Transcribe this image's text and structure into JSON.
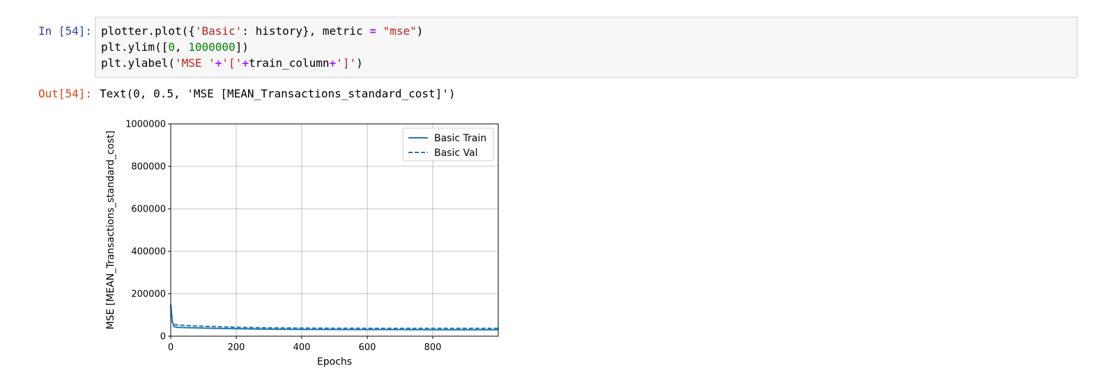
{
  "input_cell": {
    "prompt": "In [54]:",
    "line1": {
      "a": "plotter.plot({",
      "b": "'Basic'",
      "c": ": history}, metric ",
      "d": "=",
      "e": " ",
      "f": "\"mse\"",
      "g": ")"
    },
    "line2": {
      "a": "plt.ylim([",
      "b": "0",
      "c": ", ",
      "d": "1000000",
      "e": "])"
    },
    "line3": {
      "a": "plt.ylabel(",
      "b": "'MSE '",
      "c": "+",
      "d": "'['",
      "e": "+",
      "f": "train_column",
      "g": "+",
      "h": "']'",
      "i": ")"
    }
  },
  "output_cell": {
    "prompt": "Out[54]:",
    "text": "Text(0, 0.5, 'MSE [MEAN_Transactions_standard_cost]')"
  },
  "colors": {
    "in_prompt": "#303f9f",
    "out_prompt": "#d84315",
    "series": "#1f77b4"
  },
  "chart_data": {
    "type": "line",
    "title": "",
    "xlabel": "Epochs",
    "ylabel": "MSE [MEAN_Transactions_standard_cost]",
    "xlim": [
      0,
      1000
    ],
    "ylim": [
      0,
      1000000
    ],
    "x_ticks": [
      0,
      200,
      400,
      600,
      800
    ],
    "x_tick_labels": [
      "0",
      "200",
      "400",
      "600",
      "800"
    ],
    "y_ticks": [
      0,
      200000,
      400000,
      600000,
      800000,
      1000000
    ],
    "y_tick_labels": [
      "0",
      "200000",
      "400000",
      "600000",
      "800000",
      "1000000"
    ],
    "grid": true,
    "legend_position": "top-right",
    "series": [
      {
        "name": "Basic Train",
        "style": "solid",
        "x": [
          0,
          5,
          10,
          20,
          50,
          100,
          200,
          300,
          400,
          500,
          600,
          700,
          800,
          900,
          1000
        ],
        "y": [
          150000,
          70000,
          45000,
          42000,
          40000,
          38000,
          35000,
          33000,
          32000,
          31500,
          31000,
          31000,
          30500,
          30500,
          30500
        ]
      },
      {
        "name": "Basic Val",
        "style": "dashed",
        "x": [
          0,
          5,
          10,
          20,
          50,
          100,
          200,
          300,
          400,
          500,
          600,
          700,
          800,
          900,
          1000
        ],
        "y": [
          140000,
          65000,
          55000,
          53000,
          50000,
          47000,
          42000,
          39000,
          38000,
          37500,
          37000,
          37000,
          37000,
          37000,
          37000
        ]
      }
    ]
  }
}
